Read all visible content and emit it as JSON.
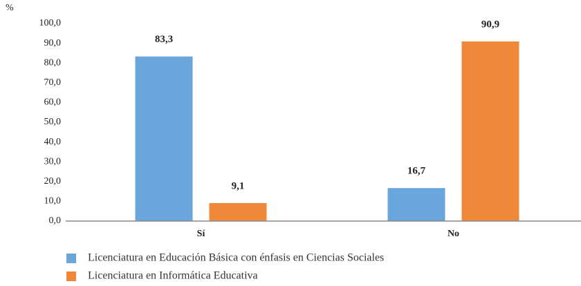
{
  "chart_data": {
    "type": "bar",
    "y_label": "%",
    "categories": [
      "Sí",
      "No"
    ],
    "series": [
      {
        "name": "Licenciatura en Educación Básica con énfasis en Ciencias Sociales",
        "color": "#6aa5dc",
        "values": [
          83.3,
          16.7
        ],
        "value_labels": [
          "83,3",
          "16,7"
        ]
      },
      {
        "name": "Licenciatura en Informática Educativa",
        "color": "#f0883a",
        "values": [
          9.1,
          90.9
        ],
        "value_labels": [
          "9,1",
          "90,9"
        ]
      }
    ],
    "ylim": [
      0,
      100
    ],
    "yticks": [
      {
        "value": 0,
        "label": "0,0"
      },
      {
        "value": 10,
        "label": "10,0"
      },
      {
        "value": 20,
        "label": "20,0"
      },
      {
        "value": 30,
        "label": "30,0"
      },
      {
        "value": 40,
        "label": "40,0"
      },
      {
        "value": 50,
        "label": "50,0"
      },
      {
        "value": 60,
        "label": "60,0"
      },
      {
        "value": 70,
        "label": "70,0"
      },
      {
        "value": 80,
        "label": "80,0"
      },
      {
        "value": 90,
        "label": "90,0"
      },
      {
        "value": 100,
        "label": "100,0"
      }
    ],
    "grid": false
  }
}
